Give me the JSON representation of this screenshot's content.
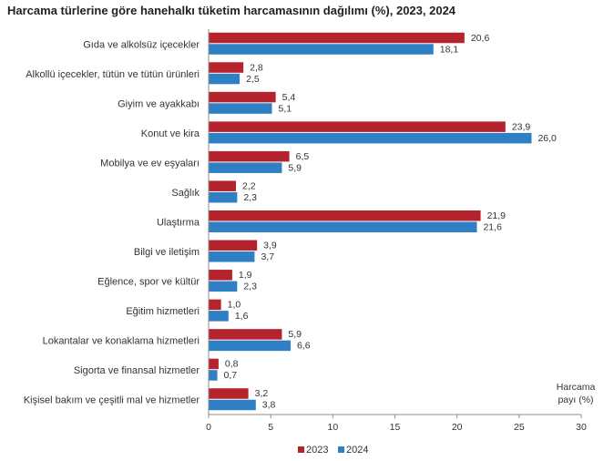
{
  "chart_data": {
    "type": "bar",
    "orientation": "horizontal",
    "title": "Harcama türlerine göre hanehalkı tüketim harcamasının dağılımı (%), 2023, 2024",
    "xlabel_line1": "Harcama",
    "xlabel_line2": "payı  (%)",
    "xlim": [
      0,
      30
    ],
    "xticks": [
      0,
      5,
      10,
      15,
      20,
      25,
      30
    ],
    "xtick_labels": [
      "0",
      "5",
      "10",
      "15",
      "20",
      "25",
      "30"
    ],
    "grid": false,
    "legend_position": "bottom",
    "categories": [
      "Gıda ve alkolsüz içecekler",
      "Alkollü içecekler, tütün ve tütün ürünleri",
      "Giyim ve ayakkabı",
      "Konut ve kira",
      "Mobilya ve ev eşyaları",
      "Sağlık",
      "Ulaştırma",
      "Bilgi ve iletişim",
      "Eğlence, spor ve kültür",
      "Eğitim hizmetleri",
      "Lokantalar ve konaklama hizmetleri",
      "Sigorta ve finansal hizmetler",
      "Kişisel bakım ve çeşitli mal ve hizmetler"
    ],
    "series": [
      {
        "name": "2023",
        "color": "#b5232d",
        "values": [
          20.6,
          2.8,
          5.4,
          23.9,
          6.5,
          2.2,
          21.9,
          3.9,
          1.9,
          1.0,
          5.9,
          0.8,
          3.2
        ],
        "labels": [
          "20,6",
          "2,8",
          "5,4",
          "23,9",
          "6,5",
          "2,2",
          "21,9",
          "3,9",
          "1,9",
          "1,0",
          "5,9",
          "0,8",
          "3,2"
        ]
      },
      {
        "name": "2024",
        "color": "#2e7fc3",
        "values": [
          18.1,
          2.5,
          5.1,
          26.0,
          5.9,
          2.3,
          21.6,
          3.7,
          2.3,
          1.6,
          6.6,
          0.7,
          3.8
        ],
        "labels": [
          "18,1",
          "2,5",
          "5,1",
          "26,0",
          "5,9",
          "2,3",
          "21,6",
          "3,7",
          "2,3",
          "1,6",
          "6,6",
          "0,7",
          "3,8"
        ]
      }
    ]
  }
}
